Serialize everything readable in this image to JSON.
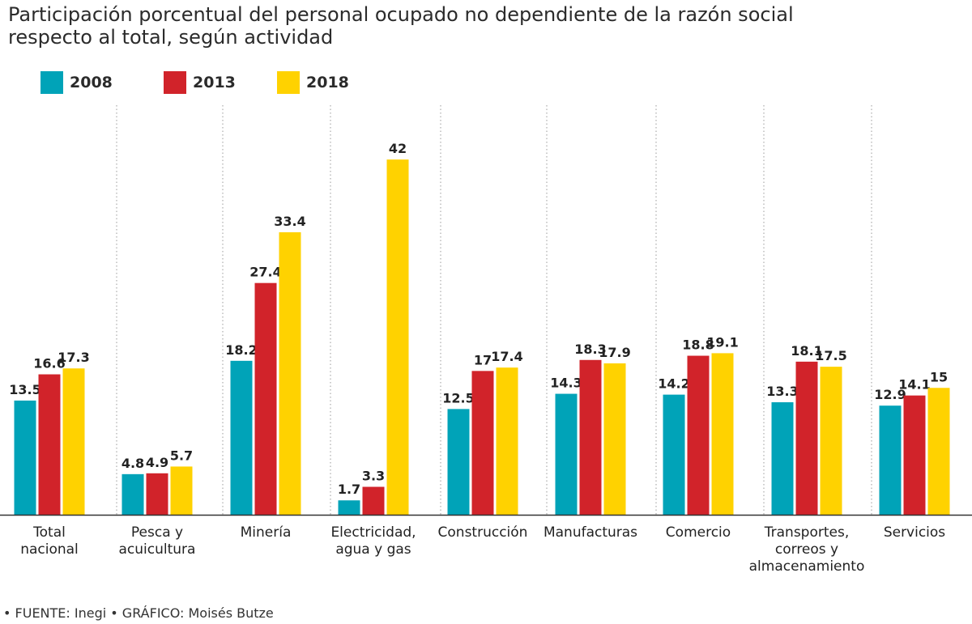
{
  "title_line1": "Participación porcentual del personal ocupado no dependiente de la razón social",
  "title_line2": "respecto al total, según actividad",
  "footer_source": "• FUENTE: Inegi",
  "footer_credit": " • GRÁFICO: Moisés Butze",
  "colors": {
    "s2008": "#00a3b8",
    "s2013": "#d1232a",
    "s2018": "#ffd200",
    "grid": "#9a9a9a",
    "axis": "#333333",
    "text": "#222222"
  },
  "chart_data": {
    "type": "bar",
    "title": "Participación porcentual del personal ocupado no dependiente de la razón social respecto al total, según actividad",
    "categories": [
      [
        "Total",
        "nacional"
      ],
      [
        "Pesca y",
        "acuicultura"
      ],
      [
        "Minería"
      ],
      [
        "Electricidad,",
        "agua y gas"
      ],
      [
        "Construcción"
      ],
      [
        "Manufacturas"
      ],
      [
        "Comercio"
      ],
      [
        "Transportes,",
        "correos y",
        "almacenamiento"
      ],
      [
        "Servicios"
      ]
    ],
    "series": [
      {
        "name": "2008",
        "values": [
          13.5,
          4.8,
          18.2,
          1.7,
          12.5,
          14.3,
          14.2,
          13.3,
          12.9
        ],
        "labels": [
          "13.5",
          "4.8",
          "18.2",
          "1.7",
          "12.5",
          "14.3",
          "14.2",
          "13.3",
          "12.9"
        ]
      },
      {
        "name": "2013",
        "values": [
          16.6,
          4.9,
          27.4,
          3.3,
          17,
          18.3,
          18.8,
          18.1,
          14.1
        ],
        "labels": [
          "16.6",
          "4.9",
          "27.4",
          "3.3",
          "17",
          "18.3",
          "18.8",
          "18.1",
          "14.1"
        ]
      },
      {
        "name": "2018",
        "values": [
          17.3,
          5.7,
          33.4,
          42,
          17.4,
          17.9,
          19.1,
          17.5,
          15
        ],
        "labels": [
          "17.3",
          "5.7",
          "33.4",
          "42",
          "17.4",
          "17.9",
          "19.1",
          "17.5",
          "15"
        ]
      }
    ],
    "ylim": [
      0,
      42
    ],
    "grid": "vertical dotted separators",
    "legend_position": "top-left"
  }
}
